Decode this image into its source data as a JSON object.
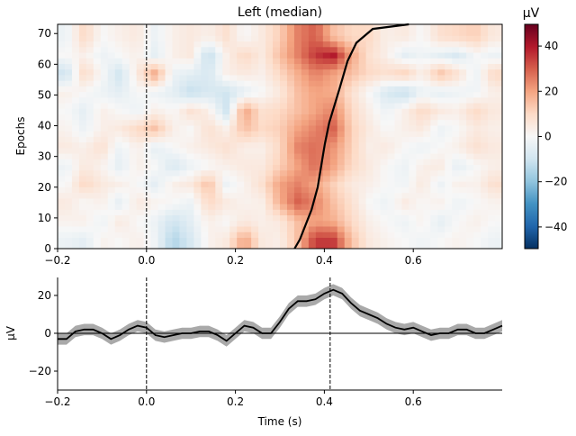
{
  "chart_data": [
    {
      "type": "heatmap",
      "title": "Left (median)",
      "xlabel": "",
      "ylabel": "Epochs",
      "xlim": [
        -0.2,
        0.8
      ],
      "ylim": [
        0,
        73
      ],
      "xticks": [
        "-0.2",
        "0.0",
        "0.2",
        "0.4",
        "0.6"
      ],
      "yticks": [
        "0",
        "10",
        "20",
        "30",
        "40",
        "50",
        "60",
        "70"
      ],
      "colormap": "RdBu_r",
      "clim": [
        -49.6,
        49.6
      ],
      "colorbar": {
        "label": "µV",
        "ticks": [
          "40",
          "20",
          "0",
          "−20",
          "−40"
        ],
        "tick_values": [
          40,
          20,
          0,
          -20,
          -40
        ]
      },
      "time_bins": [
        -0.18,
        -0.14,
        -0.1,
        -0.06,
        -0.02,
        0.02,
        0.06,
        0.1,
        0.14,
        0.18,
        0.22,
        0.26,
        0.3,
        0.34,
        0.38,
        0.42,
        0.46,
        0.5,
        0.54,
        0.58,
        0.62,
        0.66,
        0.7,
        0.74,
        0.78
      ],
      "epoch_bins": [
        3,
        9,
        15,
        21,
        27,
        33,
        39,
        45,
        51,
        57,
        63,
        69
      ],
      "values": [
        [
          -3,
          -5,
          2,
          0,
          3,
          -2,
          -15,
          -8,
          2,
          5,
          20,
          5,
          3,
          15,
          35,
          35,
          15,
          5,
          2,
          0,
          -2,
          0,
          2,
          0,
          -3
        ],
        [
          2,
          3,
          -3,
          5,
          0,
          -3,
          -10,
          -5,
          3,
          0,
          5,
          3,
          5,
          15,
          20,
          18,
          10,
          3,
          0,
          -3,
          2,
          -5,
          0,
          3,
          0
        ],
        [
          5,
          0,
          3,
          -5,
          5,
          2,
          0,
          -3,
          10,
          5,
          2,
          3,
          18,
          30,
          25,
          15,
          8,
          0,
          -3,
          5,
          0,
          3,
          -3,
          0,
          2
        ],
        [
          0,
          10,
          5,
          3,
          0,
          -5,
          3,
          5,
          15,
          -3,
          2,
          8,
          20,
          25,
          20,
          12,
          5,
          3,
          0,
          -2,
          5,
          -3,
          3,
          2,
          8
        ],
        [
          -3,
          5,
          2,
          -5,
          3,
          0,
          -8,
          -3,
          0,
          3,
          5,
          5,
          12,
          20,
          28,
          20,
          10,
          5,
          0,
          -3,
          3,
          5,
          -5,
          0,
          3
        ],
        [
          5,
          3,
          8,
          -3,
          3,
          -5,
          0,
          3,
          5,
          8,
          3,
          3,
          10,
          25,
          28,
          22,
          12,
          3,
          5,
          0,
          -3,
          0,
          3,
          8,
          5
        ],
        [
          2,
          -3,
          3,
          5,
          10,
          15,
          3,
          0,
          8,
          3,
          15,
          10,
          12,
          20,
          25,
          30,
          12,
          5,
          0,
          3,
          5,
          -3,
          0,
          5,
          3
        ],
        [
          0,
          -5,
          3,
          0,
          -3,
          3,
          0,
          8,
          3,
          -10,
          20,
          8,
          10,
          15,
          20,
          25,
          10,
          3,
          -3,
          3,
          10,
          5,
          3,
          10,
          5
        ],
        [
          3,
          0,
          -3,
          -5,
          0,
          -3,
          -5,
          -12,
          -8,
          -10,
          -5,
          0,
          5,
          15,
          20,
          18,
          8,
          0,
          -8,
          -12,
          -3,
          -5,
          -3,
          -2,
          3
        ],
        [
          -10,
          10,
          0,
          -10,
          5,
          20,
          -3,
          -5,
          -8,
          3,
          5,
          3,
          10,
          18,
          25,
          20,
          15,
          10,
          8,
          12,
          3,
          15,
          8,
          -3,
          10
        ],
        [
          0,
          3,
          -3,
          0,
          3,
          -5,
          3,
          5,
          -12,
          3,
          10,
          5,
          15,
          25,
          35,
          40,
          20,
          8,
          3,
          -5,
          -2,
          -5,
          -8,
          0,
          -3
        ],
        [
          -3,
          10,
          0,
          3,
          5,
          -3,
          3,
          5,
          3,
          8,
          0,
          5,
          12,
          25,
          30,
          15,
          10,
          10,
          3,
          5,
          0,
          8,
          10,
          12,
          5
        ]
      ],
      "sort_line": {
        "epochs": [
          0,
          3,
          12.6,
          20,
          34,
          41,
          52,
          61,
          67,
          71.5,
          73
        ],
        "times": [
          0.333,
          0.345,
          0.371,
          0.385,
          0.401,
          0.411,
          0.434,
          0.452,
          0.472,
          0.509,
          0.59
        ]
      },
      "vlines": [
        0.0
      ]
    },
    {
      "type": "line",
      "xlabel": "Time (s)",
      "ylabel": "µV",
      "xlim": [
        -0.2,
        0.8
      ],
      "ylim": [
        -30,
        29.5
      ],
      "xticks": [
        "-0.2",
        "0.0",
        "0.2",
        "0.4",
        "0.6"
      ],
      "yticks": [
        "−20",
        "0",
        "20"
      ],
      "ytick_values": [
        -20,
        0,
        20
      ],
      "x": [
        -0.2,
        -0.18,
        -0.16,
        -0.14,
        -0.12,
        -0.1,
        -0.08,
        -0.06,
        -0.04,
        -0.02,
        0,
        0.02,
        0.04,
        0.06,
        0.08,
        0.1,
        0.12,
        0.14,
        0.16,
        0.18,
        0.2,
        0.22,
        0.24,
        0.26,
        0.28,
        0.3,
        0.32,
        0.34,
        0.36,
        0.38,
        0.4,
        0.42,
        0.44,
        0.46,
        0.48,
        0.5,
        0.52,
        0.54,
        0.56,
        0.58,
        0.6,
        0.62,
        0.64,
        0.66,
        0.68,
        0.7,
        0.72,
        0.74,
        0.76,
        0.78,
        0.8
      ],
      "y": [
        -3,
        -3,
        1,
        2,
        2,
        0,
        -3,
        -1,
        2,
        4,
        3,
        -1,
        -2,
        -1,
        0,
        0,
        1,
        1,
        -1,
        -4,
        0,
        4,
        3,
        0,
        0,
        6,
        13,
        17,
        17,
        18,
        21,
        23,
        21,
        16,
        12,
        10,
        8,
        5,
        3,
        2,
        3,
        1,
        -1,
        0,
        0,
        2,
        2,
        0,
        0,
        2,
        4
      ],
      "band_halfwidth": 3,
      "vlines": [
        0.0,
        0.413
      ],
      "hline": 0,
      "line_color": "#000000",
      "band_color": "#a9a9a9"
    }
  ]
}
